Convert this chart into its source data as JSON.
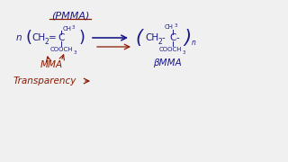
{
  "background_color": "#f0f0f0",
  "blue_color": "#1a1a8c",
  "red_color": "#8b1a00",
  "figsize": [
    3.2,
    1.8
  ],
  "dpi": 100,
  "title": "(PMMA)",
  "monomer_label": "MMA",
  "polymer_label": "βMMA",
  "transparency_label": "Transparency"
}
